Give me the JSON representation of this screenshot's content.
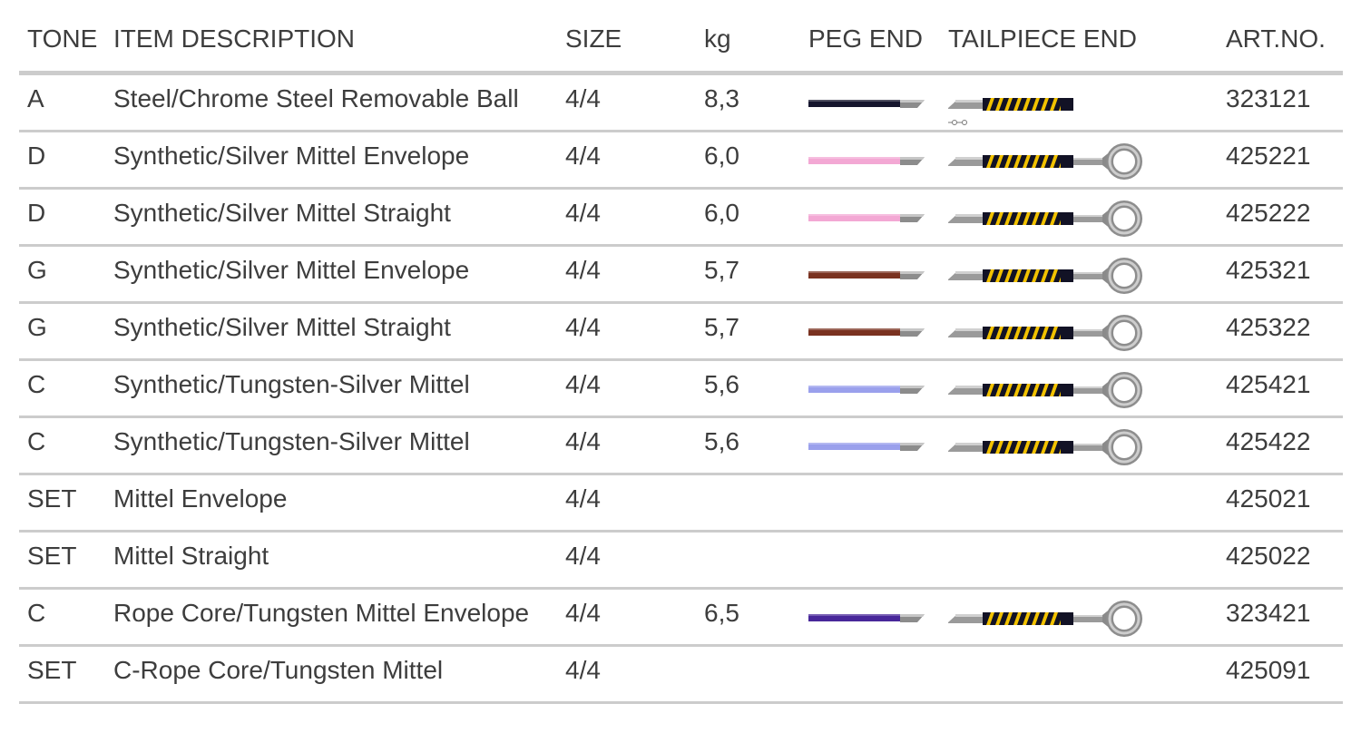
{
  "headers": {
    "tone": "TONE",
    "description": "ITEM DESCRIPTION",
    "size": "SIZE",
    "kg": "kg",
    "peg_end": "PEG END",
    "tailpiece_end": "TAILPIECE END",
    "art_no": "ART.NO."
  },
  "rows": [
    {
      "tone": "A",
      "description": "Steel/Chrome Steel Removable Ball",
      "size": "4/4",
      "kg": "8,3",
      "peg_color": "#16162e",
      "tail": "ball",
      "art_no": "323121"
    },
    {
      "tone": "D",
      "description": "Synthetic/Silver Mittel Envelope",
      "size": "4/4",
      "kg": "6,0",
      "peg_color": "#f3a8d4",
      "tail": "loop",
      "art_no": "425221"
    },
    {
      "tone": "D",
      "description": "Synthetic/Silver Mittel Straight",
      "size": "4/4",
      "kg": "6,0",
      "peg_color": "#f3a8d4",
      "tail": "loop",
      "art_no": "425222"
    },
    {
      "tone": "G",
      "description": "Synthetic/Silver Mittel Envelope",
      "size": "4/4",
      "kg": "5,7",
      "peg_color": "#7a3220",
      "tail": "loop",
      "art_no": "425321"
    },
    {
      "tone": "G",
      "description": "Synthetic/Silver Mittel Straight",
      "size": "4/4",
      "kg": "5,7",
      "peg_color": "#7a3220",
      "tail": "loop",
      "art_no": "425322"
    },
    {
      "tone": "C",
      "description": "Synthetic/Tungsten-Silver Mittel",
      "size": "4/4",
      "kg": "5,6",
      "peg_color": "#9aa0ec",
      "tail": "loop",
      "art_no": "425421"
    },
    {
      "tone": "C",
      "description": "Synthetic/Tungsten-Silver Mittel",
      "size": "4/4",
      "kg": "5,6",
      "peg_color": "#9aa0ec",
      "tail": "loop",
      "art_no": "425422"
    },
    {
      "tone": "SET",
      "description": "Mittel Envelope",
      "size": "4/4",
      "kg": "",
      "peg_color": "",
      "tail": "none",
      "art_no": "425021"
    },
    {
      "tone": "SET",
      "description": "Mittel Straight",
      "size": "4/4",
      "kg": "",
      "peg_color": "",
      "tail": "none",
      "art_no": "425022"
    },
    {
      "tone": "C",
      "description": "Rope Core/Tungsten Mittel Envelope",
      "size": "4/4",
      "kg": "6,5",
      "peg_color": "#48279a",
      "tail": "loop",
      "art_no": "323421"
    },
    {
      "tone": "SET",
      "description": "C-Rope Core/Tungsten Mittel",
      "size": "4/4",
      "kg": "",
      "peg_color": "",
      "tail": "none",
      "art_no": "425091"
    }
  ]
}
